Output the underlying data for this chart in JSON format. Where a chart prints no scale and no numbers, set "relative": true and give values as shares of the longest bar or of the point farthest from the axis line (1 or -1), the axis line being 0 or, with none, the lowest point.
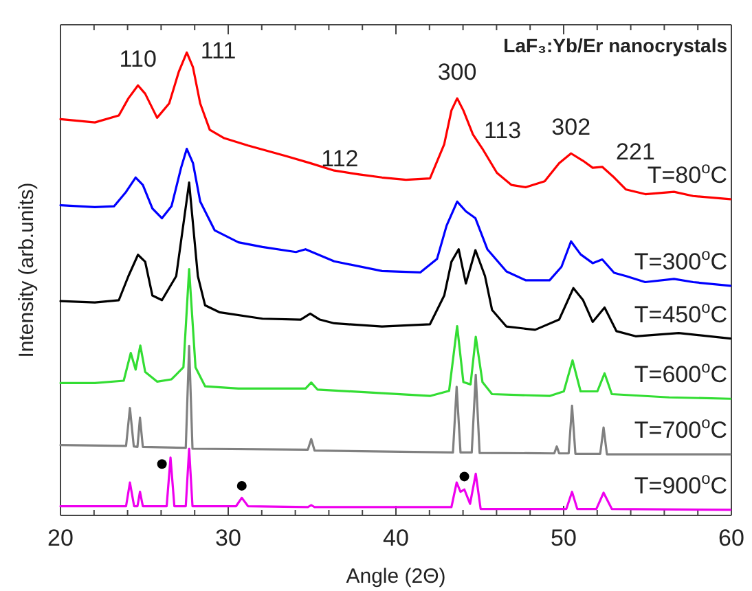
{
  "chart_data": {
    "type": "line",
    "relative": true,
    "title": "LaF₃:Yb/Er nanocrystals",
    "xlabel": "Angle (2Θ)",
    "ylabel": "Intensity (arb.units)",
    "xlim": [
      20,
      60
    ],
    "xticks": [
      20,
      30,
      40,
      50,
      60
    ],
    "tick_labels": "x",
    "annotations": [
      {
        "text": "110",
        "x": 24.62,
        "y": 0.929
      },
      {
        "text": "111",
        "x": 27.53,
        "y": 1.0
      },
      {
        "text": "112",
        "x": 34.89,
        "y": 0.761
      },
      {
        "text": "300",
        "x": 43.65,
        "y": 0.901
      },
      {
        "text": "113",
        "x": 44.59,
        "y": 0.823
      },
      {
        "text": "302",
        "x": 50.44,
        "y": 0.782
      },
      {
        "text": "221",
        "x": 52.3,
        "y": 0.753
      }
    ],
    "series": [
      {
        "name": "T=80$^{o}$C",
        "color": "#ff0000",
        "x": [
          20.0,
          22.05,
          23.48,
          24.05,
          24.62,
          25.05,
          25.76,
          26.48,
          27.05,
          27.53,
          27.9,
          28.33,
          28.9,
          29.76,
          31.18,
          33.47,
          34.89,
          36.32,
          37.75,
          39.17,
          40.6,
          42.03,
          42.88,
          43.31,
          43.65,
          44.02,
          44.59,
          45.16,
          46.02,
          46.88,
          47.73,
          48.87,
          49.73,
          50.44,
          51.16,
          51.73,
          52.3,
          53.01,
          53.72,
          54.87,
          56.58,
          57.72,
          59.94
        ],
        "values": [
          0.856,
          0.849,
          0.864,
          0.901,
          0.929,
          0.911,
          0.859,
          0.89,
          0.958,
          1.0,
          0.968,
          0.89,
          0.833,
          0.815,
          0.799,
          0.776,
          0.761,
          0.745,
          0.737,
          0.73,
          0.725,
          0.728,
          0.802,
          0.875,
          0.901,
          0.875,
          0.823,
          0.792,
          0.74,
          0.714,
          0.709,
          0.722,
          0.761,
          0.782,
          0.766,
          0.751,
          0.753,
          0.73,
          0.704,
          0.694,
          0.699,
          0.69,
          0.683
        ]
      },
      {
        "name": "T=300$^{o}$C",
        "color": "#0000ff",
        "x": [
          20.0,
          22.05,
          23.2,
          23.91,
          24.48,
          24.91,
          25.48,
          26.05,
          26.62,
          27.19,
          27.53,
          27.9,
          28.33,
          29.19,
          30.61,
          32.04,
          34.04,
          34.61,
          36.32,
          39.17,
          41.46,
          42.45,
          43.02,
          43.65,
          44.17,
          44.74,
          45.45,
          46.59,
          47.73,
          49.16,
          49.87,
          50.44,
          51.01,
          51.73,
          52.3,
          53.01,
          53.72,
          54.86,
          56.58,
          57.72,
          59.94
        ],
        "values": [
          0.67,
          0.666,
          0.668,
          0.699,
          0.73,
          0.714,
          0.663,
          0.642,
          0.668,
          0.751,
          0.792,
          0.761,
          0.678,
          0.616,
          0.59,
          0.58,
          0.569,
          0.575,
          0.549,
          0.528,
          0.525,
          0.554,
          0.626,
          0.678,
          0.657,
          0.642,
          0.575,
          0.527,
          0.508,
          0.508,
          0.537,
          0.592,
          0.564,
          0.545,
          0.553,
          0.524,
          0.517,
          0.504,
          0.511,
          0.504,
          0.496
        ]
      },
      {
        "name": "T=450$^{o}$C",
        "color": "#000000",
        "x": [
          20.0,
          22.05,
          23.48,
          24.05,
          24.62,
          25.05,
          25.48,
          26.05,
          26.9,
          27.67,
          28.19,
          28.62,
          29.47,
          32.04,
          34.32,
          34.89,
          35.46,
          36.32,
          39.17,
          42.03,
          42.88,
          43.31,
          43.74,
          44.17,
          44.74,
          45.31,
          45.73,
          46.59,
          48.3,
          49.73,
          50.58,
          51.16,
          51.73,
          52.44,
          53.15,
          54.29,
          56.86,
          59.94
        ],
        "values": [
          0.463,
          0.46,
          0.465,
          0.517,
          0.563,
          0.548,
          0.475,
          0.465,
          0.517,
          0.719,
          0.517,
          0.454,
          0.439,
          0.425,
          0.423,
          0.436,
          0.423,
          0.415,
          0.408,
          0.413,
          0.475,
          0.548,
          0.575,
          0.501,
          0.573,
          0.517,
          0.444,
          0.408,
          0.401,
          0.423,
          0.491,
          0.465,
          0.418,
          0.449,
          0.398,
          0.387,
          0.394,
          0.382
        ]
      },
      {
        "name": "T=600$^{o}$C",
        "color": "#33dd33",
        "x": [
          20.0,
          22.05,
          23.77,
          24.19,
          24.48,
          24.76,
          25.05,
          25.76,
          26.62,
          27.33,
          27.67,
          28.05,
          28.62,
          30.61,
          34.61,
          34.95,
          35.32,
          39.17,
          42.03,
          43.17,
          43.65,
          44.02,
          44.45,
          44.76,
          45.16,
          45.73,
          49.16,
          50.01,
          50.53,
          51.01,
          52.01,
          52.44,
          52.87,
          56.29,
          59.94
        ],
        "values": [
          0.286,
          0.286,
          0.291,
          0.351,
          0.315,
          0.367,
          0.31,
          0.289,
          0.294,
          0.32,
          0.532,
          0.32,
          0.279,
          0.274,
          0.274,
          0.287,
          0.272,
          0.264,
          0.258,
          0.269,
          0.409,
          0.288,
          0.283,
          0.386,
          0.288,
          0.262,
          0.258,
          0.268,
          0.335,
          0.268,
          0.268,
          0.307,
          0.262,
          0.255,
          0.252
        ]
      },
      {
        "name": "T=700$^{o}$C",
        "color": "#808080",
        "x": [
          20.0,
          23.91,
          24.14,
          24.37,
          24.59,
          24.74,
          24.91,
          27.47,
          27.67,
          27.87,
          34.75,
          34.95,
          35.15,
          43.4,
          43.62,
          43.85,
          44.52,
          44.76,
          44.99,
          49.44,
          49.59,
          49.73,
          50.3,
          50.5,
          50.7,
          52.18,
          52.38,
          52.58,
          59.94
        ],
        "values": [
          0.152,
          0.15,
          0.232,
          0.149,
          0.148,
          0.211,
          0.148,
          0.146,
          0.366,
          0.144,
          0.142,
          0.165,
          0.14,
          0.136,
          0.278,
          0.136,
          0.136,
          0.304,
          0.135,
          0.134,
          0.149,
          0.134,
          0.134,
          0.237,
          0.133,
          0.133,
          0.19,
          0.132,
          0.132
        ]
      },
      {
        "name": "T=900$^{o}$C",
        "color": "#ee00ee",
        "x": [
          20.0,
          23.91,
          24.14,
          24.39,
          24.59,
          24.74,
          24.91,
          26.33,
          26.56,
          26.79,
          27.47,
          27.67,
          27.87,
          30.47,
          30.81,
          31.18,
          34.75,
          34.95,
          35.15,
          43.31,
          43.62,
          43.85,
          44.08,
          44.42,
          44.76,
          45.05,
          50.16,
          50.5,
          50.81,
          51.95,
          52.38,
          52.87,
          59.94
        ],
        "values": [
          0.02,
          0.02,
          0.071,
          0.02,
          0.02,
          0.051,
          0.02,
          0.02,
          0.125,
          0.02,
          0.02,
          0.144,
          0.02,
          0.02,
          0.038,
          0.02,
          0.018,
          0.022,
          0.018,
          0.018,
          0.071,
          0.051,
          0.056,
          0.025,
          0.09,
          0.014,
          0.014,
          0.051,
          0.014,
          0.014,
          0.049,
          0.014,
          0.012
        ]
      },
      {
        "type": "scatter",
        "color": "#000000",
        "x": [
          26.05,
          30.81,
          44.08
        ],
        "values": [
          0.111,
          0.064,
          0.084
        ]
      }
    ]
  }
}
